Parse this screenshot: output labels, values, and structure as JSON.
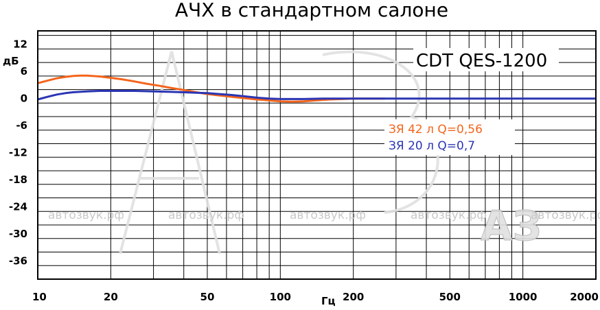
{
  "colors": {
    "series1": "#f4651c",
    "series2": "#2b35b4",
    "grid": "#000000",
    "watermark": "#c9c9c9"
  },
  "chart_data": {
    "type": "line",
    "title": "АЧХ в стандартном салоне",
    "model": "CDT QES-1200",
    "xlabel": "Гц",
    "ylabel": "дБ",
    "xscale": "log",
    "xlim": [
      10,
      2000
    ],
    "ylim": [
      -40,
      15
    ],
    "x_ticks": [
      10,
      20,
      50,
      100,
      200,
      500,
      1000,
      2000
    ],
    "x_tick_labels": [
      "10",
      "20",
      "50",
      "100",
      "200",
      "500",
      "1000",
      "2000"
    ],
    "y_ticks": [
      12,
      6,
      0,
      -6,
      -12,
      -18,
      -24,
      -30,
      -36
    ],
    "y_tick_labels": [
      "12",
      "6",
      "0",
      "-6",
      "-12",
      "-18",
      "-24",
      "-30",
      "-36"
    ],
    "grid": true,
    "legend_position": "center-right",
    "series": [
      {
        "name": "ЗЯ 42 л Q=0,56",
        "x": [
          10,
          11,
          12,
          13,
          14,
          15,
          16,
          18,
          20,
          22,
          25,
          28,
          32,
          36,
          40,
          45,
          50,
          56,
          63,
          71,
          80,
          90,
          100,
          112,
          125,
          140,
          160,
          180,
          200,
          225,
          250,
          270
        ],
        "y": [
          3.4,
          4.0,
          4.5,
          4.8,
          5.0,
          5.1,
          5.1,
          4.9,
          4.6,
          4.3,
          3.8,
          3.3,
          2.8,
          2.3,
          1.9,
          1.4,
          1.0,
          0.7,
          0.4,
          0.1,
          -0.2,
          -0.4,
          -0.6,
          -0.7,
          -0.6,
          -0.4,
          -0.2,
          -0.1,
          0.0,
          0.0,
          0.0,
          0.0
        ]
      },
      {
        "name": "ЗЯ 20 л Q=0,7",
        "x": [
          10,
          11,
          12,
          13,
          14,
          16,
          18,
          20,
          25,
          30,
          35,
          40,
          45,
          50,
          56,
          63,
          71,
          80,
          90,
          100,
          125,
          150,
          200,
          300,
          500,
          1000,
          2000
        ],
        "y": [
          -0.2,
          0.4,
          0.9,
          1.2,
          1.4,
          1.6,
          1.7,
          1.7,
          1.7,
          1.6,
          1.5,
          1.4,
          1.3,
          1.2,
          1.0,
          0.8,
          0.5,
          0.2,
          0.0,
          -0.1,
          -0.1,
          0.0,
          0.0,
          0.0,
          0.0,
          0.0,
          0.0
        ]
      }
    ],
    "watermark_text": [
      "автозвук.рф",
      "автозвук.рф",
      "автозвук.рф",
      "автозвук.рф",
      "автозвук.рф"
    ],
    "logo_text": "АЗ"
  }
}
